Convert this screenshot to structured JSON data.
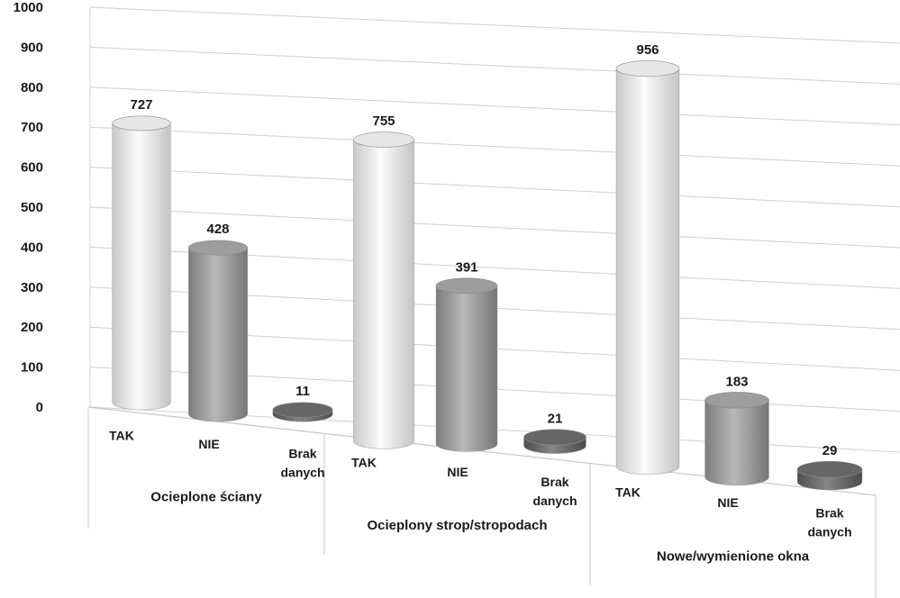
{
  "chart_data": {
    "type": "bar",
    "style": "3d-cylinder",
    "ylim": [
      0,
      1000
    ],
    "yticks": [
      "0",
      "100",
      "200",
      "300",
      "400",
      "500",
      "600",
      "700",
      "800",
      "900",
      "1000"
    ],
    "grid": true,
    "groups": [
      {
        "label": "Ocieplone ściany",
        "bars": [
          {
            "category": "TAK",
            "value": 727,
            "value_label": "727"
          },
          {
            "category": "NIE",
            "value": 428,
            "value_label": "428"
          },
          {
            "category": "Brak danych",
            "value": 11,
            "value_label": "11"
          }
        ]
      },
      {
        "label": "Ocieplony strop/stropodach",
        "bars": [
          {
            "category": "TAK",
            "value": 755,
            "value_label": "755"
          },
          {
            "category": "NIE",
            "value": 391,
            "value_label": "391"
          },
          {
            "category": "Brak danych",
            "value": 21,
            "value_label": "21"
          }
        ]
      },
      {
        "label": "Nowe/wymienione okna",
        "bars": [
          {
            "category": "TAK",
            "value": 956,
            "value_label": "956"
          },
          {
            "category": "NIE",
            "value": 183,
            "value_label": "183"
          },
          {
            "category": "Brak danych",
            "value": 29,
            "value_label": "29"
          }
        ]
      }
    ],
    "colors": {
      "TAK": "#f0f0f0",
      "NIE": "#a6a6a6",
      "Brak danych": "#6e6e6e"
    }
  }
}
